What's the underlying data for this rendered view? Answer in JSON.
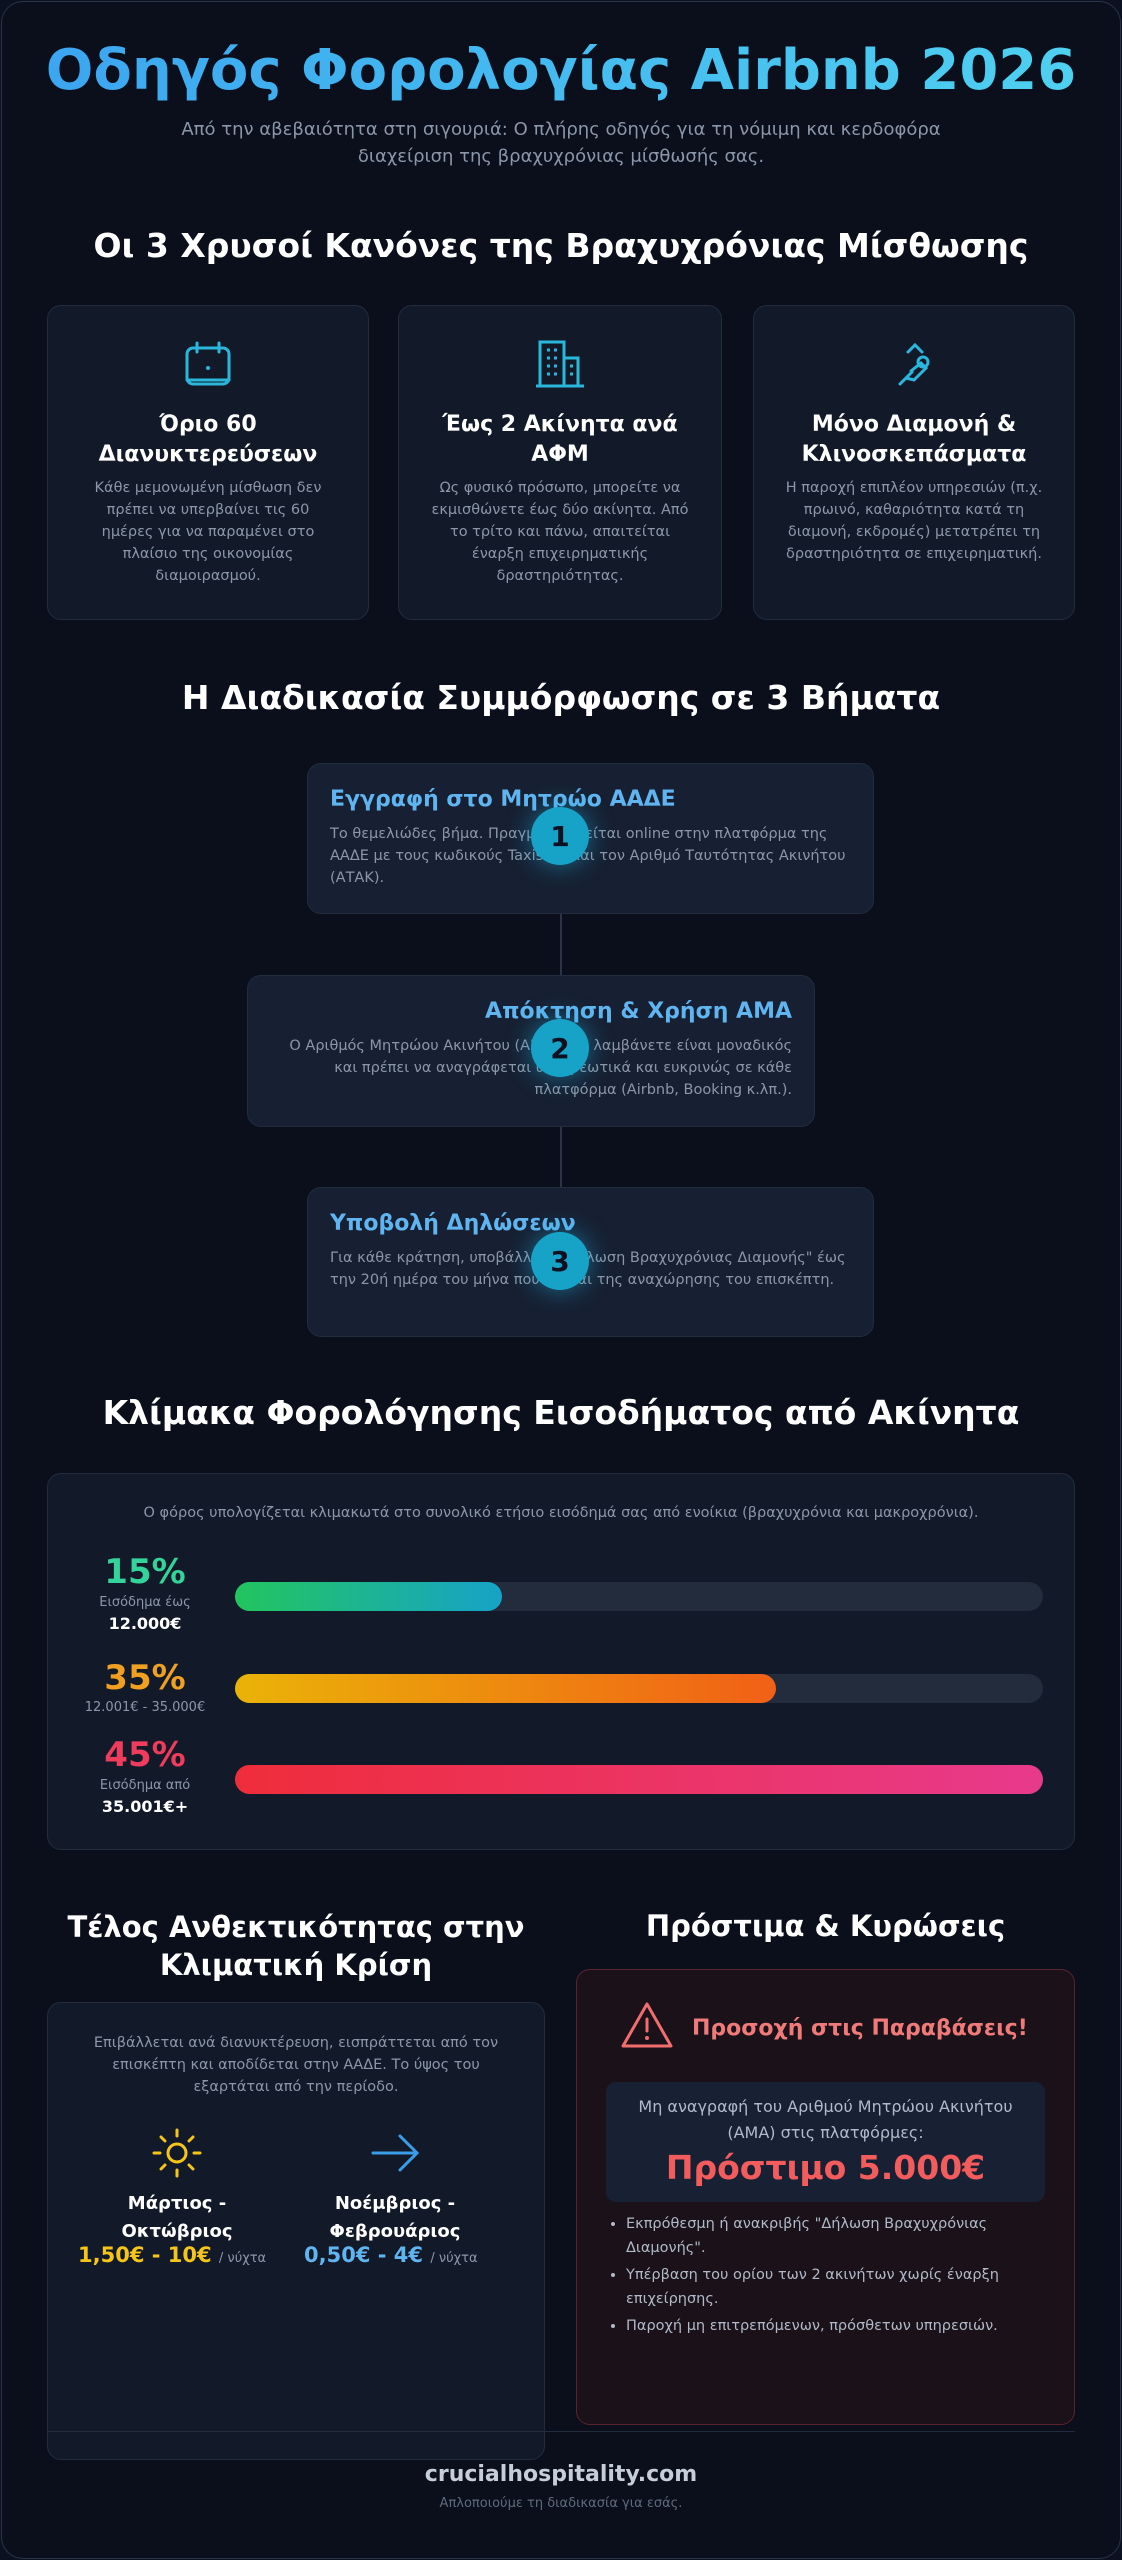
{
  "header": {
    "title": "Οδηγός Φορολογίας Airbnb 2026",
    "subtitle": "Από την αβεβαιότητα στη σιγουριά: Ο πλήρης οδηγός για τη νόμιμη και κερδοφόρα διαχείριση της βραχυχρόνιας μίσθωσής σας."
  },
  "rules": {
    "title": "Οι 3 Χρυσοί Κανόνες της Βραχυχρόνιας Μίσθωσης",
    "items": [
      {
        "title": "Όριο 60 Διανυκτερεύσεων",
        "text": "Κάθε μεμονωμένη μίσθωση δεν πρέπει να υπερβαίνει τις 60 ημέρες για να παραμένει στο πλαίσιο της οικονομίας διαμοιρασμού."
      },
      {
        "title": "Έως 2 Ακίνητα ανά ΑΦΜ",
        "text": "Ως φυσικό πρόσωπο, μπορείτε να εκμισθώνετε έως δύο ακίνητα. Από το τρίτο και πάνω, απαιτείται έναρξη επιχειρηματικής δραστηριότητας."
      },
      {
        "title": "Μόνο Διαμονή & Κλινοσκεπάσματα",
        "text": "Η παροχή επιπλέον υπηρεσιών (π.χ. πρωινό, καθαριότητα κατά τη διαμονή, εκδρομές) μετατρέπει τη δραστηριότητα σε επιχειρηματική."
      }
    ]
  },
  "steps": {
    "title": "Η Διαδικασία Συμμόρφωσης σε 3 Βήματα",
    "items": [
      {
        "number": 1,
        "title": "Εγγραφή στο Μητρώο ΑΑΔΕ",
        "text": "Το θεμελιώδες βήμα. Πραγματοποιείται online στην πλατφόρμα της ΑΑΔΕ με τους κωδικούς Taxisnet και τον Αριθμό Ταυτότητας Ακινήτου (ΑΤΑΚ)."
      },
      {
        "number": 2,
        "title": "Απόκτηση & Χρήση ΑΜΑ",
        "text": "Ο Αριθμός Μητρώου Ακινήτου (ΑΜΑ) που λαμβάνετε είναι μοναδικός και πρέπει να αναγράφεται υποχρεωτικά και ευκρινώς σε κάθε πλατφόρμα (Airbnb, Booking κ.λπ.)."
      },
      {
        "number": 3,
        "title": "Υποβολή Δηλώσεων",
        "text": "Για κάθε κράτηση, υποβάλλετε \"Δήλωση Βραχυχρόνιας Διαμονής\" έως την 20ή ημέρα του μήνα που έπεται της αναχώρησης του επισκέπτη."
      }
    ]
  },
  "tax": {
    "title": "Κλίμακα Φορολόγησης Εισοδήματος από Ακίνητα",
    "note": "Ο φόρος υπολογίζεται κλιμακωτά στο συνολικό ετήσιο εισόδημά σας από ενοίκια (βραχυχρόνια και μακροχρόνια).",
    "brackets": [
      {
        "rate": "15%",
        "label": "Εισόδημα έως",
        "amount": "12.000€"
      },
      {
        "rate": "35%",
        "label": "12.001€ - 35.000€"
      },
      {
        "rate": "45%",
        "label": "Εισόδημα από",
        "amount": "35.001€+"
      }
    ]
  },
  "climate": {
    "title": "Τέλος Ανθεκτικότητας στην Κλιματική Κρίση",
    "text": "Επιβάλλεται ανά διανυκτέρευση, εισπράττεται από τον επισκέπτη και αποδίδεται στην ΑΑΔΕ. Το ύψος του εξαρτάται από την περίοδο.",
    "seasons": [
      {
        "name": "Μάρτιος - Οκτώβριος",
        "price": "1,50€ - 10€",
        "unit": "/ νύχτα"
      },
      {
        "name": "Νοέμβριος - Φεβρουάριος",
        "price": "0,50€ - 4€",
        "unit": "/ νύχτα"
      }
    ]
  },
  "penalties": {
    "title": "Πρόστιμα & Κυρώσεις",
    "alert": "Προσοχή στις Παραβάσεις!",
    "box_text": "Μη αναγραφή του Αριθμού Μητρώου Ακινήτου (ΑΜΑ) στις πλατφόρμες:",
    "fine": "Πρόστιμο 5.000€",
    "list": [
      "Εκπρόθεσμη ή ανακριβής \"Δήλωση Βραχυχρόνιας Διαμονής\".",
      "Υπέρβαση του ορίου των 2 ακινήτων χωρίς έναρξη επιχείρησης.",
      "Παροχή μη επιτρεπόμενων, πρόσθετων υπηρεσιών."
    ]
  },
  "footer": {
    "brand": "crucialhospitality.com",
    "tagline": "Απλοποιούμε τη διαδικασία για εσάς."
  }
}
